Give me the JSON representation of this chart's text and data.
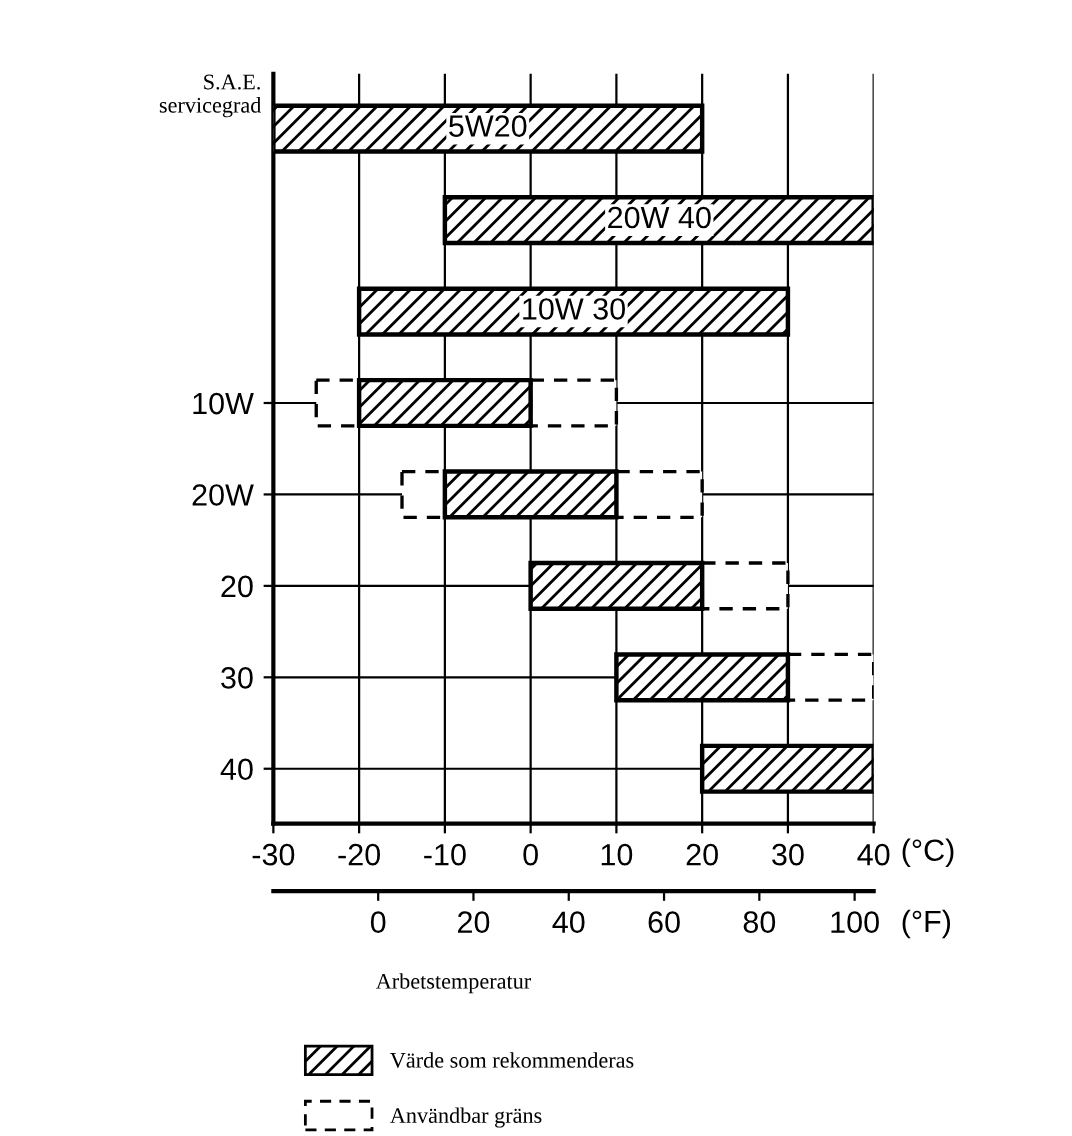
{
  "chart_data": {
    "type": "bar",
    "orientation": "horizontal",
    "ylabel": "S.A.E.\nservicegrad",
    "xlabel": "(°C)",
    "x2label": "(°F)",
    "annotations": [
      "5W20",
      "20W 40",
      "10W 30",
      "Arbetstemperatur"
    ],
    "categories": [
      null,
      null,
      null,
      "10W",
      "20W",
      "20",
      "30",
      "40"
    ],
    "series": [
      {
        "name": "Användbar gräns",
        "color": "#000000",
        "line_style": "dashed",
        "base": [
          null,
          null,
          null,
          -25,
          -15,
          null,
          null,
          null
        ],
        "values": [
          null,
          null,
          null,
          5,
          5,
          null,
          null,
          null
        ]
      },
      {
        "color": "#000000",
        "line_style": "dashed",
        "base": [
          null,
          null,
          null,
          0,
          10,
          20,
          30,
          null
        ],
        "values": [
          null,
          null,
          null,
          10,
          10,
          10,
          10,
          null
        ]
      },
      {
        "name": "Värde som rekommenderas",
        "color": "#000000",
        "line_style": "solid",
        "base": [
          -30,
          -10,
          -20,
          -20,
          -10,
          0,
          10,
          20
        ],
        "values": [
          50,
          50,
          50,
          20,
          20,
          20,
          20,
          20
        ]
      }
    ],
    "xlim": [
      -30,
      40
    ],
    "xticks": [
      -30,
      -20,
      -10,
      0,
      10,
      20,
      30,
      40
    ],
    "x2lim": [
      -22,
      104
    ],
    "x2ticks": [
      0,
      20,
      40,
      60,
      80,
      100
    ],
    "grid": true,
    "legend": "bottom"
  }
}
